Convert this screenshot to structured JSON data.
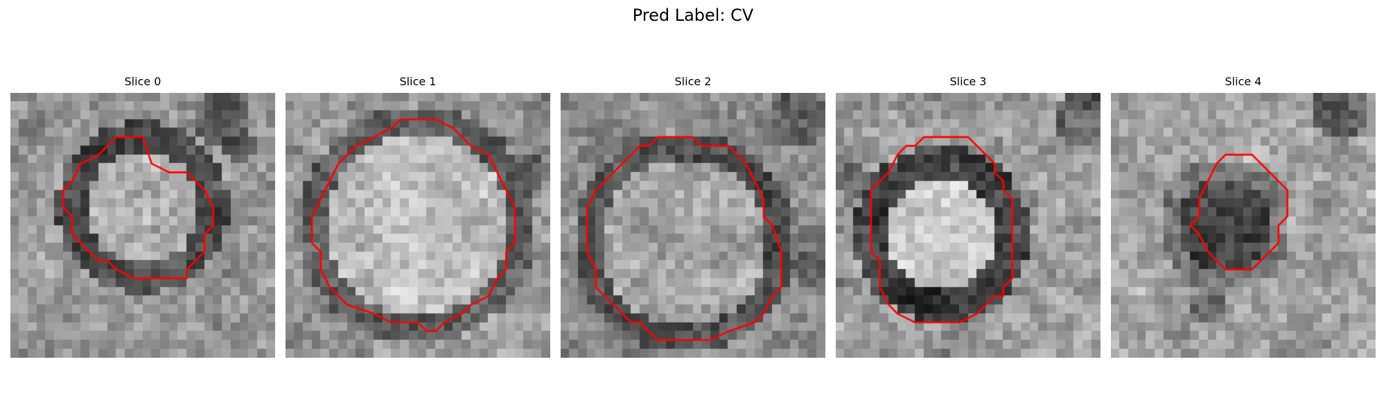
{
  "figure": {
    "title": "Pred Label: CV"
  },
  "panels": [
    {
      "title": "Slice 0",
      "contour_color": "#ff0000",
      "contour_grid": [
        [
          16,
          8
        ],
        [
          18,
          9
        ],
        [
          20,
          9
        ],
        [
          22,
          11
        ],
        [
          23,
          13
        ],
        [
          23,
          15
        ],
        [
          22,
          16
        ],
        [
          22,
          18
        ],
        [
          21,
          19
        ],
        [
          20,
          20
        ],
        [
          20,
          21
        ],
        [
          19,
          21
        ],
        [
          14,
          21
        ],
        [
          12,
          20
        ],
        [
          11,
          19
        ],
        [
          10,
          19
        ],
        [
          8,
          17
        ],
        [
          7,
          16
        ],
        [
          7,
          14
        ],
        [
          6,
          13
        ],
        [
          6,
          11
        ],
        [
          7,
          10
        ],
        [
          8,
          8
        ],
        [
          10,
          7
        ],
        [
          11,
          6
        ],
        [
          12,
          5
        ],
        [
          15,
          5
        ]
      ]
    },
    {
      "title": "Slice 1",
      "contour_color": "#ff0000",
      "contour_grid": [
        [
          13,
          3
        ],
        [
          17,
          3
        ],
        [
          19,
          4
        ],
        [
          21,
          6
        ],
        [
          23,
          7
        ],
        [
          24,
          9
        ],
        [
          25,
          11
        ],
        [
          26,
          13
        ],
        [
          26,
          17
        ],
        [
          25,
          18
        ],
        [
          25,
          20
        ],
        [
          24,
          21
        ],
        [
          23,
          23
        ],
        [
          21,
          24
        ],
        [
          20,
          25
        ],
        [
          18,
          26
        ],
        [
          17,
          27
        ],
        [
          16,
          27
        ],
        [
          15,
          26
        ],
        [
          12,
          26
        ],
        [
          10,
          25
        ],
        [
          7,
          24
        ],
        [
          5,
          22
        ],
        [
          4,
          20
        ],
        [
          4,
          18
        ],
        [
          3,
          17
        ],
        [
          3,
          14
        ],
        [
          4,
          12
        ],
        [
          5,
          10
        ],
        [
          6,
          8
        ],
        [
          8,
          6
        ],
        [
          10,
          5
        ],
        [
          12,
          4
        ]
      ]
    },
    {
      "title": "Slice 2",
      "contour_color": "#ff0000",
      "contour_grid": [
        [
          11,
          5
        ],
        [
          15,
          5
        ],
        [
          16,
          6
        ],
        [
          19,
          6
        ],
        [
          21,
          8
        ],
        [
          22,
          10
        ],
        [
          23,
          12
        ],
        [
          23,
          14
        ],
        [
          24,
          15
        ],
        [
          25,
          18
        ],
        [
          25,
          22
        ],
        [
          24,
          23
        ],
        [
          23,
          25
        ],
        [
          22,
          26
        ],
        [
          19,
          27
        ],
        [
          17,
          28
        ],
        [
          11,
          28
        ],
        [
          10,
          27
        ],
        [
          9,
          26
        ],
        [
          8,
          26
        ],
        [
          6,
          24
        ],
        [
          5,
          23
        ],
        [
          4,
          22
        ],
        [
          4,
          20
        ],
        [
          3,
          18
        ],
        [
          3,
          13
        ],
        [
          4,
          11
        ],
        [
          5,
          10
        ],
        [
          7,
          8
        ],
        [
          9,
          6
        ],
        [
          10,
          6
        ]
      ]
    },
    {
      "title": "Slice 3",
      "contour_color": "#ff0000",
      "contour_grid": [
        [
          10,
          5
        ],
        [
          15,
          5
        ],
        [
          17,
          7
        ],
        [
          18,
          8
        ],
        [
          18,
          9
        ],
        [
          19,
          10
        ],
        [
          19,
          11
        ],
        [
          20,
          12
        ],
        [
          20,
          21
        ],
        [
          19,
          22
        ],
        [
          19,
          23
        ],
        [
          18,
          23
        ],
        [
          17,
          24
        ],
        [
          16,
          25
        ],
        [
          14,
          26
        ],
        [
          9,
          26
        ],
        [
          7,
          25
        ],
        [
          6,
          24
        ],
        [
          5,
          22
        ],
        [
          5,
          19
        ],
        [
          4,
          18
        ],
        [
          4,
          11
        ],
        [
          5,
          10
        ],
        [
          6,
          9
        ],
        [
          7,
          7
        ],
        [
          8,
          6
        ],
        [
          9,
          6
        ]
      ]
    },
    {
      "title": "Slice 4",
      "contour_color": "#ff0000",
      "contour_grid": [
        [
          13,
          7
        ],
        [
          16,
          7
        ],
        [
          17,
          8
        ],
        [
          18,
          9
        ],
        [
          19,
          10
        ],
        [
          20,
          11
        ],
        [
          20,
          14
        ],
        [
          19,
          15
        ],
        [
          19,
          17
        ],
        [
          18,
          18
        ],
        [
          17,
          19
        ],
        [
          16,
          20
        ],
        [
          13,
          20
        ],
        [
          12,
          19
        ],
        [
          11,
          18
        ],
        [
          10,
          16
        ],
        [
          9,
          15
        ],
        [
          10,
          14
        ],
        [
          10,
          12
        ],
        [
          11,
          10
        ],
        [
          12,
          8
        ]
      ]
    }
  ]
}
